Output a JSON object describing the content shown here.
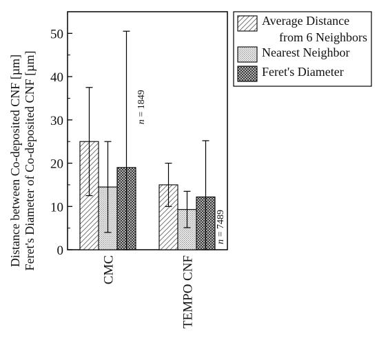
{
  "chart_data": {
    "type": "bar",
    "ylabel_line1": "Distance between Co-deposited CNF [µm]",
    "ylabel_line2": "Feret's Diameter of Co-deposited CNF [µm]",
    "ylim": [
      0,
      55
    ],
    "yticks": [
      0,
      10,
      20,
      30,
      40,
      50
    ],
    "yticklabels": [
      "0",
      "10",
      "20",
      "30",
      "40",
      "50"
    ],
    "categories": [
      "CMC",
      "TEMPO CNF"
    ],
    "series": [
      {
        "name": "Average Distance from 6 Neighbors",
        "legend_lines": [
          "Average Distance",
          "from 6 Neighbors"
        ],
        "pattern": "diagonal-hatch",
        "values": [
          25,
          15
        ],
        "errors": [
          12.5,
          5
        ]
      },
      {
        "name": "Nearest Neighbor",
        "legend_lines": [
          "Nearest Neighbor"
        ],
        "pattern": "fine-dots",
        "values": [
          14.5,
          9.3
        ],
        "errors": [
          10.5,
          4.2
        ]
      },
      {
        "name": "Feret's Diameter",
        "legend_lines": [
          "Feret's Diameter"
        ],
        "pattern": "crosshatch",
        "values": [
          19,
          12.2
        ],
        "errors": [
          31.5,
          13
        ]
      }
    ],
    "annotations": [
      {
        "n_label": "n",
        "text": " = 1849",
        "category": "CMC"
      },
      {
        "n_label": "n",
        "text": " = 7489",
        "category": "TEMPO CNF"
      }
    ],
    "legend_position": "top-right",
    "grid": false
  }
}
